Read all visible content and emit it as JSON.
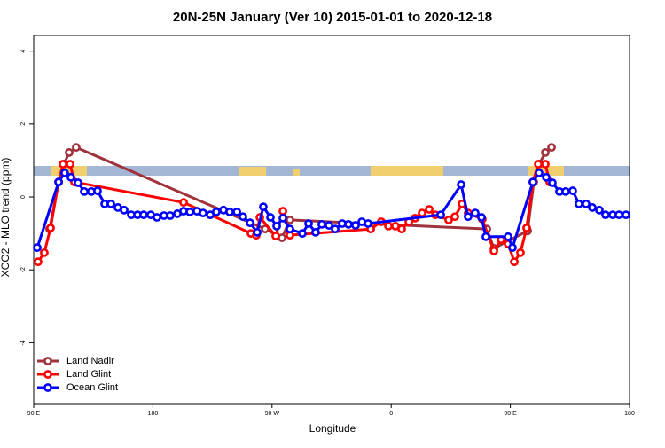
{
  "chart_data": {
    "type": "line",
    "title": "20N-25N January (Ver 10)   2015-01-01 to 2020-12-18",
    "x_label": "Longitude",
    "y_label": "XCO2 - MLO trend (ppm)",
    "xlim": [
      90,
      540
    ],
    "ylim": [
      -5.67,
      4.43
    ],
    "xticks": [
      {
        "value": 90,
        "label": "90 E"
      },
      180,
      {
        "value": 270,
        "label": "90 W"
      },
      {
        "value": 360,
        "label": "0"
      },
      {
        "value": 450,
        "label": "90 E"
      },
      {
        "value": 540,
        "label": "180"
      }
    ],
    "yticks": [
      -4,
      -2,
      0,
      2,
      4
    ],
    "legend": "bottomleft",
    "series": [
      {
        "name": "Land Nadir",
        "color": "#a0323c",
        "x": [
          102.0,
          108.8,
          112.8,
          116.8,
          122.1,
          264.8,
          277.5,
          283.5,
          432.2,
          437.6,
          463.0,
          467.7,
          471.7,
          476.4,
          481.1
        ],
        "values": [
          -0.88,
          0.41,
          0.9,
          1.22,
          1.36,
          -0.88,
          -1.12,
          -0.63,
          -0.88,
          -1.41,
          -0.93,
          0.41,
          0.9,
          1.22,
          1.36
        ]
      },
      {
        "name": "Land Glint",
        "color": "#ff0000",
        "x": [
          93.3,
          98.0,
          102.7,
          108.8,
          112.1,
          117.5,
          120.8,
          203.2,
          254.1,
          258.1,
          260.8,
          272.8,
          278.2,
          283.5,
          344.5,
          352.5,
          357.9,
          363.2,
          367.9,
          373.3,
          378.0,
          383.3,
          388.7,
          393.4,
          403.4,
          408.1,
          413.5,
          418.1,
          428.8,
          437.6,
          443.0,
          448.3,
          453.0,
          457.6,
          462.3,
          467.0,
          471.1,
          476.4,
          479.7
        ],
        "values": [
          -1.78,
          -1.53,
          -0.85,
          0.41,
          0.9,
          0.9,
          0.41,
          -0.15,
          -1.0,
          -1.05,
          -0.56,
          -1.07,
          -0.39,
          -1.05,
          -0.88,
          -0.68,
          -0.8,
          -0.8,
          -0.88,
          -0.68,
          -0.58,
          -0.44,
          -0.34,
          -0.49,
          -0.63,
          -0.54,
          -0.19,
          -0.44,
          -0.61,
          -1.48,
          -1.17,
          -1.29,
          -1.78,
          -1.53,
          -0.85,
          0.41,
          0.9,
          0.9,
          0.41
        ]
      },
      {
        "name": "Ocean Glint",
        "color": "#0000ff",
        "x": [
          92.7,
          108.8,
          113.4,
          118.1,
          123.5,
          128.2,
          133.5,
          138.2,
          143.6,
          148.3,
          153.6,
          158.3,
          163.7,
          168.4,
          173.0,
          178.4,
          183.1,
          188.4,
          193.1,
          198.5,
          203.2,
          207.9,
          213.2,
          217.9,
          223.3,
          227.9,
          233.3,
          238.0,
          243.4,
          248.0,
          253.4,
          258.8,
          263.4,
          268.8,
          273.5,
          278.2,
          283.5,
          292.9,
          297.6,
          302.9,
          307.6,
          313.0,
          317.7,
          323.0,
          327.7,
          333.1,
          337.8,
          342.5,
          397.4,
          412.8,
          418.1,
          423.5,
          428.2,
          431.5,
          448.3,
          451.6,
          467.0,
          471.7,
          477.1,
          481.7,
          487.1,
          491.8,
          497.1,
          501.8,
          507.2,
          511.9,
          517.2,
          521.9,
          527.3,
          532.0,
          537.3
        ],
        "values": [
          -1.39,
          0.41,
          0.66,
          0.54,
          0.39,
          0.15,
          0.15,
          0.17,
          -0.19,
          -0.19,
          -0.29,
          -0.36,
          -0.49,
          -0.49,
          -0.49,
          -0.49,
          -0.56,
          -0.51,
          -0.51,
          -0.46,
          -0.39,
          -0.41,
          -0.39,
          -0.44,
          -0.49,
          -0.41,
          -0.36,
          -0.41,
          -0.41,
          -0.54,
          -0.71,
          -0.97,
          -0.27,
          -0.56,
          -0.8,
          -0.58,
          -0.88,
          -1.0,
          -0.73,
          -0.97,
          -0.75,
          -0.78,
          -0.88,
          -0.73,
          -0.75,
          -0.78,
          -0.68,
          -0.73,
          -0.49,
          0.34,
          -0.54,
          -0.44,
          -0.56,
          -1.09,
          -1.09,
          -1.39,
          0.41,
          0.66,
          0.54,
          0.39,
          0.15,
          0.15,
          0.17,
          -0.19,
          -0.19,
          -0.29,
          -0.36,
          -0.49,
          -0.49,
          -0.49,
          -0.49
        ]
      }
    ]
  }
}
